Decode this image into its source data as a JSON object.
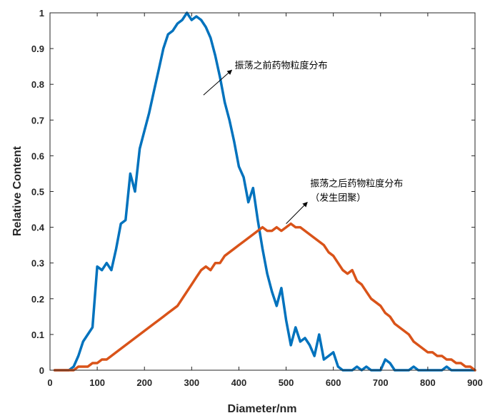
{
  "chart_data": {
    "type": "line",
    "xlabel": "Diameter/nm",
    "ylabel": "Relative Content",
    "xlim": [
      0,
      900
    ],
    "ylim": [
      0,
      1
    ],
    "xticks": [
      0,
      100,
      200,
      300,
      400,
      500,
      600,
      700,
      800,
      900
    ],
    "yticks": [
      0,
      0.1,
      0.2,
      0.3,
      0.4,
      0.5,
      0.6,
      0.7,
      0.8,
      0.9,
      1
    ],
    "ytick_labels": [
      "0",
      "0.1",
      "0.2",
      "0.3",
      "0.4",
      "0.5",
      "0.6",
      "0.7",
      "0.8",
      "0.9",
      "1"
    ],
    "grid": false,
    "series": [
      {
        "color": "#0072BD",
        "x": [
          10,
          20,
          30,
          40,
          50,
          60,
          70,
          80,
          90,
          100,
          110,
          120,
          130,
          140,
          150,
          160,
          170,
          180,
          190,
          200,
          210,
          220,
          230,
          240,
          250,
          260,
          270,
          280,
          290,
          300,
          310,
          320,
          330,
          340,
          350,
          360,
          370,
          380,
          390,
          400,
          410,
          420,
          430,
          440,
          450,
          460,
          470,
          480,
          490,
          500,
          510,
          520,
          530,
          540,
          550,
          560,
          570,
          580,
          590,
          600,
          610,
          620,
          630,
          640,
          650,
          660,
          670,
          680,
          690,
          700,
          710,
          720,
          730,
          740,
          750,
          760,
          770,
          780,
          790,
          800,
          810,
          820,
          830,
          840,
          850,
          860,
          870,
          880,
          890,
          900
        ],
        "y": [
          0,
          0,
          0,
          0,
          0.01,
          0.04,
          0.08,
          0.1,
          0.12,
          0.29,
          0.28,
          0.3,
          0.28,
          0.34,
          0.41,
          0.42,
          0.55,
          0.5,
          0.62,
          0.67,
          0.72,
          0.78,
          0.84,
          0.9,
          0.94,
          0.95,
          0.97,
          0.98,
          1.0,
          0.98,
          0.99,
          0.98,
          0.96,
          0.93,
          0.88,
          0.82,
          0.75,
          0.7,
          0.64,
          0.57,
          0.54,
          0.47,
          0.51,
          0.42,
          0.34,
          0.27,
          0.22,
          0.18,
          0.23,
          0.14,
          0.07,
          0.12,
          0.08,
          0.09,
          0.07,
          0.04,
          0.1,
          0.03,
          0.04,
          0.05,
          0.01,
          0.0,
          0.0,
          0.0,
          0.01,
          0.0,
          0.01,
          0.0,
          0.0,
          0.0,
          0.03,
          0.02,
          0.0,
          0.0,
          0.0,
          0.0,
          0.01,
          0.0,
          0.0,
          0.0,
          0.0,
          0.0,
          0.0,
          0.01,
          0.0,
          0.0,
          0.0,
          0.0,
          0.0,
          0.0
        ]
      },
      {
        "color": "#D95319",
        "x": [
          10,
          20,
          30,
          40,
          50,
          60,
          70,
          80,
          90,
          100,
          110,
          120,
          130,
          140,
          150,
          160,
          170,
          180,
          190,
          200,
          210,
          220,
          230,
          240,
          250,
          260,
          270,
          280,
          290,
          300,
          310,
          320,
          330,
          340,
          350,
          360,
          370,
          380,
          390,
          400,
          410,
          420,
          430,
          440,
          450,
          460,
          470,
          480,
          490,
          500,
          510,
          520,
          530,
          540,
          550,
          560,
          570,
          580,
          590,
          600,
          610,
          620,
          630,
          640,
          650,
          660,
          670,
          680,
          690,
          700,
          710,
          720,
          730,
          740,
          750,
          760,
          770,
          780,
          790,
          800,
          810,
          820,
          830,
          840,
          850,
          860,
          870,
          880,
          890,
          900
        ],
        "y": [
          0,
          0,
          0,
          0,
          0,
          0.01,
          0.01,
          0.01,
          0.02,
          0.02,
          0.03,
          0.03,
          0.04,
          0.05,
          0.06,
          0.07,
          0.08,
          0.09,
          0.1,
          0.11,
          0.12,
          0.13,
          0.14,
          0.15,
          0.16,
          0.17,
          0.18,
          0.2,
          0.22,
          0.24,
          0.26,
          0.28,
          0.29,
          0.28,
          0.3,
          0.3,
          0.32,
          0.33,
          0.34,
          0.35,
          0.36,
          0.37,
          0.38,
          0.39,
          0.4,
          0.39,
          0.39,
          0.4,
          0.39,
          0.4,
          0.41,
          0.4,
          0.4,
          0.39,
          0.38,
          0.37,
          0.36,
          0.35,
          0.33,
          0.32,
          0.3,
          0.28,
          0.27,
          0.28,
          0.25,
          0.24,
          0.22,
          0.2,
          0.19,
          0.18,
          0.16,
          0.15,
          0.13,
          0.12,
          0.11,
          0.1,
          0.08,
          0.07,
          0.06,
          0.05,
          0.05,
          0.04,
          0.04,
          0.03,
          0.03,
          0.02,
          0.02,
          0.01,
          0.01,
          0.0
        ]
      }
    ],
    "annotations": [
      {
        "lines": [
          "振荡之前药物粒度分布"
        ],
        "arrow_from": [
          325,
          0.77
        ],
        "arrow_to": [
          385,
          0.84
        ]
      },
      {
        "lines": [
          "振荡之后药物粒度分布",
          "（发生团聚）"
        ],
        "arrow_from": [
          500,
          0.41
        ],
        "arrow_to": [
          545,
          0.47
        ]
      }
    ]
  }
}
